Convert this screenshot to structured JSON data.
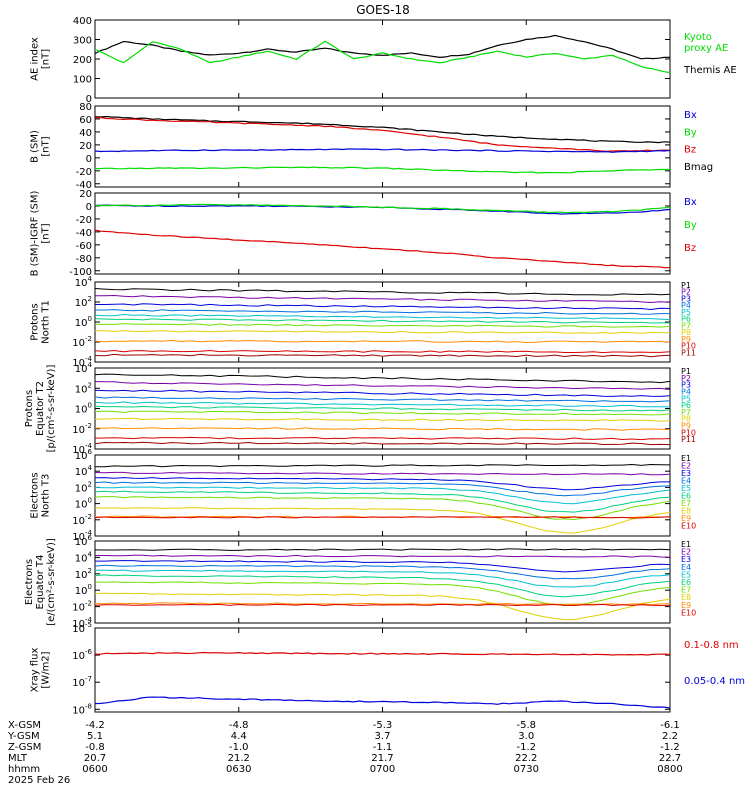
{
  "title": "GOES-18",
  "x_ticks": [
    "",
    "",
    "",
    "",
    ""
  ],
  "bottom_rows": [
    {
      "label": "X-GSM",
      "values": [
        "-4.2",
        "-4.8",
        "-5.3",
        "-5.8",
        "-6.1"
      ]
    },
    {
      "label": "Y-GSM",
      "values": [
        "5.1",
        "4.4",
        "3.7",
        "3.0",
        "2.2"
      ]
    },
    {
      "label": "Z-GSM",
      "values": [
        "-0.8",
        "-1.0",
        "-1.1",
        "-1.2",
        "-1.2"
      ]
    },
    {
      "label": "MLT",
      "values": [
        "20.7",
        "21.2",
        "21.7",
        "22.2",
        "22.7"
      ]
    },
    {
      "label": "hhmm",
      "values": [
        "0600",
        "0630",
        "0700",
        "0730",
        "0800"
      ]
    }
  ],
  "date_label": "2025 Feb 26",
  "colors": {
    "black": "#000000",
    "blue": "#0000dd",
    "green": "#00dd00",
    "red": "#dd0000",
    "purple": "#7a00a8",
    "cyan": "#00c0d0",
    "lime": "#70e000",
    "yellow": "#e0d000",
    "orange": "#ff8c00",
    "darkred": "#9b0000"
  },
  "chart_data": [
    {
      "type": "line",
      "panel": "ae",
      "ylabel": "AE index\n[nT]",
      "ylim": [
        0,
        400
      ],
      "yscale": "linear",
      "ticks": [
        0,
        100,
        200,
        300,
        400
      ],
      "tick_labels": [
        "0",
        "100",
        "200",
        "300",
        "400"
      ],
      "legend": [
        {
          "text": "Kyoto\nproxy AE",
          "color": "#00dd00"
        },
        {
          "text": "Themis AE",
          "color": "#000000"
        }
      ],
      "x": [
        0,
        0.05,
        0.1,
        0.15,
        0.2,
        0.25,
        0.3,
        0.35,
        0.4,
        0.45,
        0.5,
        0.55,
        0.6,
        0.65,
        0.7,
        0.75,
        0.8,
        0.85,
        0.9,
        0.95,
        1.0
      ],
      "series": [
        {
          "name": "Themis AE",
          "color": "#000000",
          "values": [
            230,
            290,
            270,
            240,
            220,
            230,
            250,
            235,
            255,
            230,
            220,
            230,
            210,
            225,
            270,
            300,
            320,
            290,
            250,
            200,
            210
          ]
        },
        {
          "name": "Kyoto proxy AE",
          "color": "#00dd00",
          "values": [
            250,
            180,
            290,
            250,
            180,
            210,
            240,
            200,
            290,
            200,
            230,
            200,
            180,
            210,
            240,
            210,
            230,
            200,
            220,
            160,
            130
          ]
        }
      ]
    },
    {
      "type": "line",
      "panel": "bsm",
      "ylabel": "B (SM)\n[nT]",
      "ylim": [
        -45,
        80
      ],
      "yscale": "linear",
      "ticks": [
        -40,
        -20,
        0,
        20,
        40,
        60,
        80
      ],
      "tick_labels": [
        "-40",
        "-20",
        "0",
        "20",
        "40",
        "60",
        "80"
      ],
      "legend": [
        {
          "text": "Bx",
          "color": "#0000dd"
        },
        {
          "text": "By",
          "color": "#00dd00"
        },
        {
          "text": "Bz",
          "color": "#dd0000"
        },
        {
          "text": "Bmag",
          "color": "#000000"
        }
      ],
      "x": [
        0,
        0.1,
        0.2,
        0.3,
        0.4,
        0.5,
        0.6,
        0.7,
        0.8,
        0.9,
        1.0
      ],
      "series": [
        {
          "name": "Bmag",
          "color": "#000000",
          "values": [
            64,
            60,
            57,
            55,
            52,
            47,
            40,
            33,
            29,
            25,
            24
          ]
        },
        {
          "name": "Bz",
          "color": "#dd0000",
          "values": [
            62,
            58,
            55,
            52,
            49,
            42,
            32,
            20,
            15,
            10,
            12
          ]
        },
        {
          "name": "Bx",
          "color": "#0000dd",
          "values": [
            10,
            11,
            12,
            12,
            13,
            13,
            12,
            11,
            10,
            9,
            11
          ]
        },
        {
          "name": "By",
          "color": "#00dd00",
          "values": [
            -17,
            -16,
            -16,
            -15,
            -15,
            -16,
            -19,
            -22,
            -23,
            -20,
            -17
          ]
        }
      ]
    },
    {
      "type": "line",
      "panel": "bsm_igrf",
      "ylabel": "B (SM)-IGRF (SM)\n[nT]",
      "ylim": [
        -105,
        20
      ],
      "yscale": "linear",
      "ticks": [
        -100,
        -80,
        -60,
        -40,
        -20,
        0,
        20
      ],
      "tick_labels": [
        "-100",
        "-80",
        "-60",
        "-40",
        "-20",
        "0",
        "20"
      ],
      "legend": [
        {
          "text": "Bx",
          "color": "#0000dd"
        },
        {
          "text": "By",
          "color": "#00dd00"
        },
        {
          "text": "Bz",
          "color": "#dd0000"
        }
      ],
      "x": [
        0,
        0.1,
        0.2,
        0.3,
        0.4,
        0.5,
        0.6,
        0.7,
        0.8,
        0.9,
        1.0
      ],
      "series": [
        {
          "name": "Bx",
          "color": "#0000dd",
          "values": [
            1,
            0,
            0,
            0,
            -1,
            -2,
            -5,
            -8,
            -12,
            -11,
            -6
          ]
        },
        {
          "name": "By",
          "color": "#00dd00",
          "values": [
            1,
            1,
            2,
            1,
            0,
            -2,
            -4,
            -7,
            -10,
            -9,
            -3
          ]
        },
        {
          "name": "Bz",
          "color": "#dd0000",
          "values": [
            -38,
            -45,
            -50,
            -55,
            -60,
            -66,
            -72,
            -80,
            -86,
            -92,
            -95
          ]
        }
      ]
    },
    {
      "type": "line",
      "panel": "protons_t1",
      "ylabel": "Protons\nNorth T1",
      "ylim": [
        -4,
        4
      ],
      "yscale": "log",
      "ticks": [
        4,
        2,
        0,
        -2,
        -4
      ],
      "tick_labels": [
        "10^4",
        "10^2",
        "10^0",
        "10^-2",
        "10^-4"
      ],
      "channels": [
        {
          "name": "P1",
          "color": "#000000",
          "start": 3.3,
          "end": 2.7
        },
        {
          "name": "P2",
          "color": "#7a00a8",
          "start": 2.6,
          "end": 2.0
        },
        {
          "name": "P3",
          "color": "#0000dd",
          "start": 1.8,
          "end": 1.3
        },
        {
          "name": "P4",
          "color": "#0070e0",
          "start": 1.2,
          "end": 0.8
        },
        {
          "name": "P5",
          "color": "#00c0d0",
          "start": 0.7,
          "end": 0.3
        },
        {
          "name": "P6",
          "color": "#00d080",
          "start": 0.3,
          "end": -0.1
        },
        {
          "name": "P7",
          "color": "#70e000",
          "start": -0.2,
          "end": -0.5
        },
        {
          "name": "P8",
          "color": "#e0d000",
          "start": -0.9,
          "end": -1.1
        },
        {
          "name": "P9",
          "color": "#ff8c00",
          "start": -1.9,
          "end": -2.0
        },
        {
          "name": "P10",
          "color": "#dd0000",
          "start": -2.9,
          "end": -3.0
        },
        {
          "name": "P11",
          "color": "#9b0000",
          "start": -3.3,
          "end": -3.4
        }
      ]
    },
    {
      "type": "line",
      "panel": "protons_t2",
      "ylabel": "Protons\nEquator T2\n[p/(cm²-s-sr-keV)]",
      "ylim": [
        -4,
        4
      ],
      "yscale": "log",
      "ticks": [
        4,
        2,
        0,
        -2,
        -4
      ],
      "tick_labels": [
        "10^4",
        "10^2",
        "10^0",
        "10^-2",
        "10^-4"
      ],
      "channels": [
        {
          "name": "P1",
          "color": "#000000",
          "start": 3.4,
          "end": 2.6
        },
        {
          "name": "P2",
          "color": "#7a00a8",
          "start": 2.6,
          "end": 1.9
        },
        {
          "name": "P3",
          "color": "#0000dd",
          "start": 1.8,
          "end": 1.2
        },
        {
          "name": "P4",
          "color": "#0070e0",
          "start": 1.1,
          "end": 0.7
        },
        {
          "name": "P5",
          "color": "#00c0d0",
          "start": 0.6,
          "end": 0.2
        },
        {
          "name": "P6",
          "color": "#00d080",
          "start": 0.2,
          "end": -0.2
        },
        {
          "name": "P7",
          "color": "#70e000",
          "start": -0.3,
          "end": -0.6
        },
        {
          "name": "P8",
          "color": "#e0d000",
          "start": -1.0,
          "end": -1.2
        },
        {
          "name": "P9",
          "color": "#ff8c00",
          "start": -1.9,
          "end": -2.1
        },
        {
          "name": "P10",
          "color": "#dd0000",
          "start": -2.9,
          "end": -3.0
        },
        {
          "name": "P11",
          "color": "#9b0000",
          "start": -3.4,
          "end": -3.5
        }
      ]
    },
    {
      "type": "line",
      "panel": "electrons_t3",
      "ylabel": "Electrons\nNorth T3",
      "ylim": [
        -4,
        6
      ],
      "yscale": "log",
      "ticks": [
        6,
        4,
        2,
        0,
        -2,
        -4
      ],
      "tick_labels": [
        "10^6",
        "10^4",
        "10^2",
        "10^0",
        "10^-2",
        "10^-4"
      ],
      "channels": [
        {
          "name": "E1",
          "color": "#000000",
          "start": 4.6,
          "end": 4.8
        },
        {
          "name": "E2",
          "color": "#7a00a8",
          "start": 3.8,
          "end": 3.6
        },
        {
          "name": "E3",
          "color": "#0000dd",
          "start": 3.2,
          "end": 2.8
        },
        {
          "name": "E4",
          "color": "#0070e0",
          "start": 2.6,
          "end": 2.4
        },
        {
          "name": "E5",
          "color": "#00c0d0",
          "start": 2.0,
          "end": 1.8
        },
        {
          "name": "E6",
          "color": "#00d080",
          "start": 1.5,
          "end": 1.0
        },
        {
          "name": "E7",
          "color": "#70e000",
          "start": 0.8,
          "end": 0.5
        },
        {
          "name": "E8",
          "color": "#e0d000",
          "start": -0.5,
          "end": -0.8
        },
        {
          "name": "E9",
          "color": "#ff8c00",
          "start": -1.6,
          "end": -1.7
        },
        {
          "name": "E10",
          "color": "#dd0000",
          "start": -1.7,
          "end": -1.7
        }
      ]
    },
    {
      "type": "line",
      "panel": "electrons_t4",
      "ylabel": "Electrons\nEquator T4\n[e/(cm²-s-sr-keV)]",
      "ylim": [
        -4,
        6
      ],
      "yscale": "log",
      "ticks": [
        6,
        4,
        2,
        0,
        -2,
        -4
      ],
      "tick_labels": [
        "10^6",
        "10^4",
        "10^2",
        "10^0",
        "10^-2",
        "10^-4"
      ],
      "channels": [
        {
          "name": "E1",
          "color": "#000000",
          "start": 4.9,
          "end": 5.0
        },
        {
          "name": "E2",
          "color": "#7a00a8",
          "start": 4.2,
          "end": 4.1
        },
        {
          "name": "E3",
          "color": "#0000dd",
          "start": 3.6,
          "end": 3.3
        },
        {
          "name": "E4",
          "color": "#0070e0",
          "start": 3.0,
          "end": 2.8
        },
        {
          "name": "E5",
          "color": "#00c0d0",
          "start": 2.4,
          "end": 2.1
        },
        {
          "name": "E6",
          "color": "#00d080",
          "start": 1.8,
          "end": 1.3
        },
        {
          "name": "E7",
          "color": "#70e000",
          "start": 1.0,
          "end": 0.6
        },
        {
          "name": "E8",
          "color": "#e0d000",
          "start": -0.4,
          "end": -0.8
        },
        {
          "name": "E9",
          "color": "#ff8c00",
          "start": -1.6,
          "end": -1.7
        },
        {
          "name": "E10",
          "color": "#dd0000",
          "start": -1.8,
          "end": -1.8
        }
      ]
    },
    {
      "type": "line",
      "panel": "xray",
      "ylabel": "Xray flux\n[W/m2]",
      "ylim": [
        -8.1,
        -5
      ],
      "yscale": "log",
      "ticks": [
        -5,
        -6,
        -7,
        -8
      ],
      "tick_labels": [
        "10^-5",
        "10^-6",
        "10^-7",
        "10^-8"
      ],
      "legend": [
        {
          "text": "0.1-0.8 nm",
          "color": "#dd0000"
        },
        {
          "text": "0.05-0.4 nm",
          "color": "#0000dd"
        }
      ],
      "x": [
        0,
        0.1,
        0.2,
        0.3,
        0.4,
        0.5,
        0.6,
        0.7,
        0.8,
        0.9,
        1.0
      ],
      "series": [
        {
          "name": "0.1-0.8 nm",
          "color": "#dd0000",
          "values": [
            -5.95,
            -5.93,
            -5.92,
            -5.93,
            -5.94,
            -5.95,
            -5.96,
            -5.96,
            -5.97,
            -5.98,
            -5.98
          ]
        },
        {
          "name": "0.05-0.4 nm",
          "color": "#0000dd",
          "values": [
            -7.8,
            -7.55,
            -7.6,
            -7.65,
            -7.7,
            -7.72,
            -7.75,
            -7.8,
            -7.7,
            -7.8,
            -7.95
          ]
        }
      ]
    }
  ]
}
